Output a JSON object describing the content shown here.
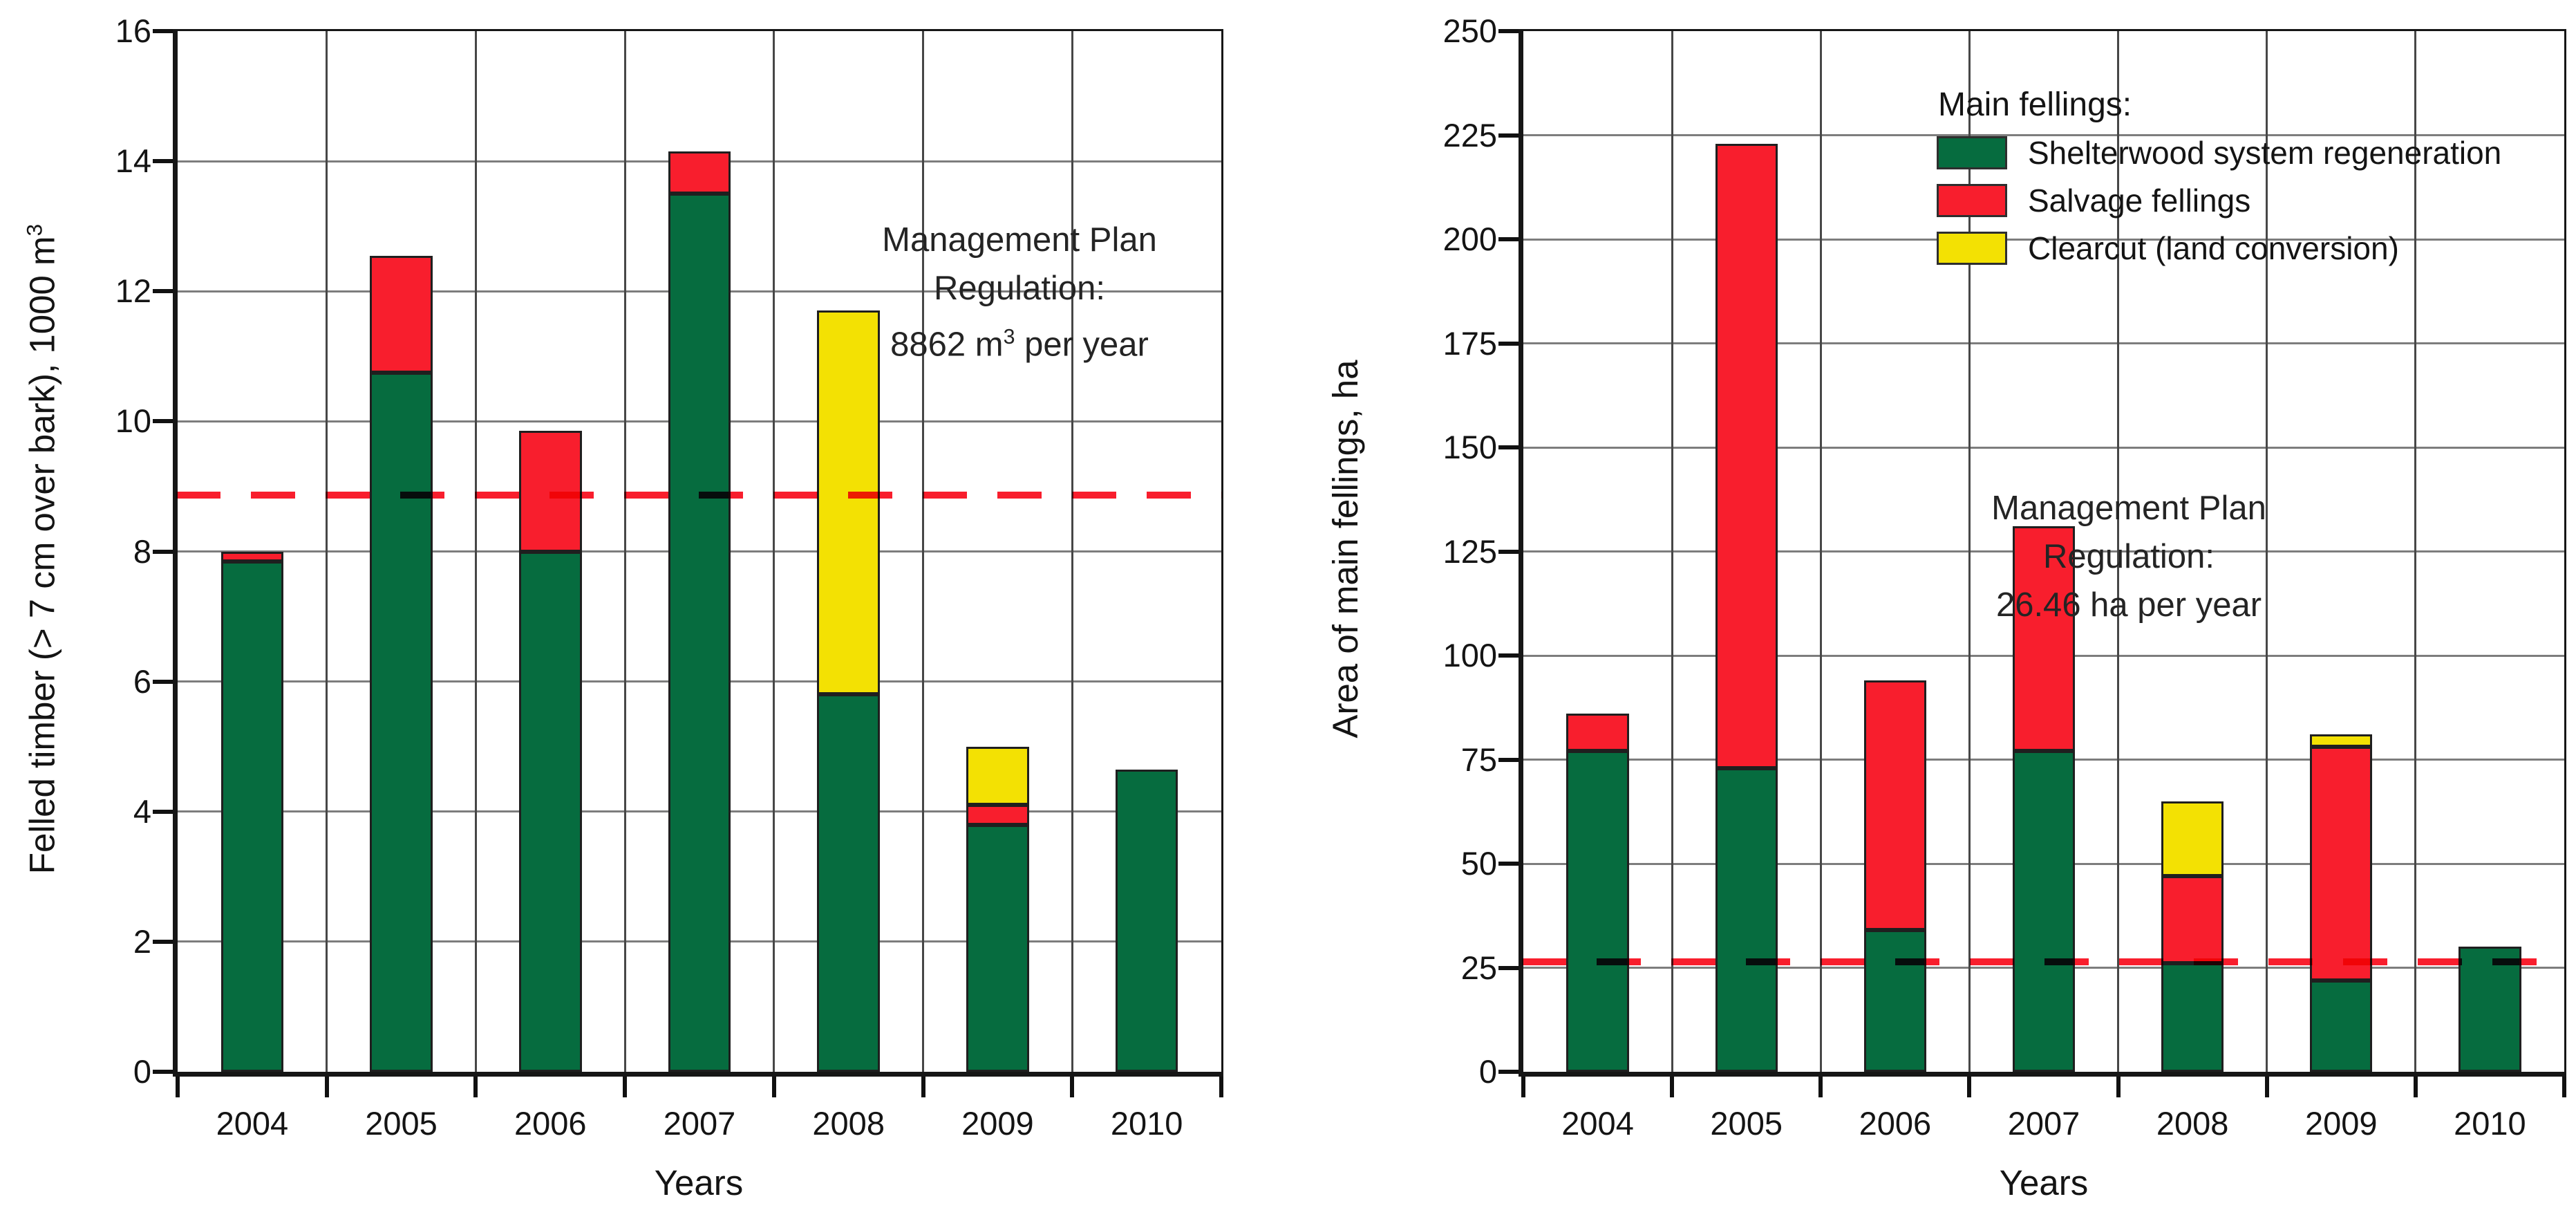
{
  "page": {
    "background": "#ffffff"
  },
  "colors": {
    "shelterwood_green": "#066c3f",
    "salvage_red": "#f81e2d",
    "clearcut_yellow": "#f3e103",
    "regulation_dash_red": "#f81e2d",
    "gridline_gray": "#7d7d7d",
    "axis_black": "#161616",
    "text_black": "#141414"
  },
  "chart_data": [
    {
      "type": "bar",
      "stacked": true,
      "title": "",
      "xlabel": "Years",
      "ylabel": "Felled timber (> 7 cm over bark), 1000 m³",
      "ylabel_parts": {
        "pre": "Felled timber (> 7 cm over bark), 1000 m",
        "sup": "3"
      },
      "categories": [
        "2004",
        "2005",
        "2006",
        "2007",
        "2008",
        "2009",
        "2010"
      ],
      "series": [
        {
          "name": "Shelterwood system regeneration",
          "key": "shelterwood",
          "color_key": "shelterwood_green",
          "values": [
            7.85,
            10.75,
            8.0,
            13.5,
            5.8,
            3.8,
            4.65
          ]
        },
        {
          "name": "Salvage fellings",
          "key": "salvage",
          "color_key": "salvage_red",
          "values": [
            0.15,
            1.8,
            1.85,
            0.65,
            0,
            0.3,
            0
          ]
        },
        {
          "name": "Clearcut (land conversion)",
          "key": "clearcut",
          "color_key": "clearcut_yellow",
          "values": [
            0,
            0,
            0,
            0,
            5.9,
            0.9,
            0
          ]
        }
      ],
      "totals": [
        8.0,
        12.55,
        9.85,
        14.15,
        11.7,
        5.0,
        4.65
      ],
      "ylim": [
        0,
        16
      ],
      "yticks": [
        0,
        2,
        4,
        6,
        8,
        10,
        12,
        14,
        16
      ],
      "grid": true,
      "legend_position": "none",
      "regulation_line": {
        "value": 8.862,
        "style": "dashed-red"
      },
      "annotation": {
        "line1": "Management Plan",
        "line2": "Regulation:",
        "line3_pre": "8862 m",
        "line3_sup": "3",
        "line3_post": " per year"
      }
    },
    {
      "type": "bar",
      "stacked": true,
      "title": "",
      "xlabel": "Years",
      "ylabel": "Area of main fellings, ha",
      "categories": [
        "2004",
        "2005",
        "2006",
        "2007",
        "2008",
        "2009",
        "2010"
      ],
      "series": [
        {
          "name": "Shelterwood system regeneration",
          "key": "shelterwood",
          "color_key": "shelterwood_green",
          "values": [
            77,
            73,
            34,
            77,
            26,
            22,
            30
          ]
        },
        {
          "name": "Salvage fellings",
          "key": "salvage",
          "color_key": "salvage_red",
          "values": [
            9,
            150,
            60,
            54,
            21,
            56,
            0
          ]
        },
        {
          "name": "Clearcut (land conversion)",
          "key": "clearcut",
          "color_key": "clearcut_yellow",
          "values": [
            0,
            0,
            0,
            0,
            18,
            3,
            0
          ]
        }
      ],
      "totals": [
        86,
        223,
        94,
        131,
        65,
        81,
        30
      ],
      "ylim": [
        0,
        250
      ],
      "yticks": [
        0,
        25,
        50,
        75,
        100,
        125,
        150,
        175,
        200,
        225,
        250
      ],
      "grid": true,
      "legend_position": "top-right-inside",
      "regulation_line": {
        "value": 26.46,
        "style": "dashed-red"
      },
      "annotation": {
        "line1": "Management Plan",
        "line2": "Regulation:",
        "line3_pre": "26.46 ha per year"
      },
      "legend": {
        "title": "Main fellings:",
        "items": [
          {
            "label": "Shelterwood system regeneration",
            "color_key": "shelterwood_green"
          },
          {
            "label": "Salvage fellings",
            "color_key": "salvage_red"
          },
          {
            "label": "Clearcut (land conversion)",
            "color_key": "clearcut_yellow"
          }
        ]
      }
    }
  ]
}
